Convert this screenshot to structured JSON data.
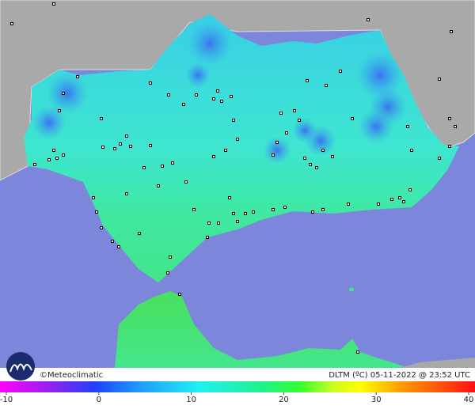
{
  "footer": {
    "credit": "©Meteoclimatic",
    "caption": "DLTM (ºC) 05-11-2022 @ 23:52 UTC"
  },
  "colorbar": {
    "range": [
      -10,
      40
    ],
    "ticks": [
      -10,
      0,
      10,
      20,
      30,
      40
    ]
  }
}
